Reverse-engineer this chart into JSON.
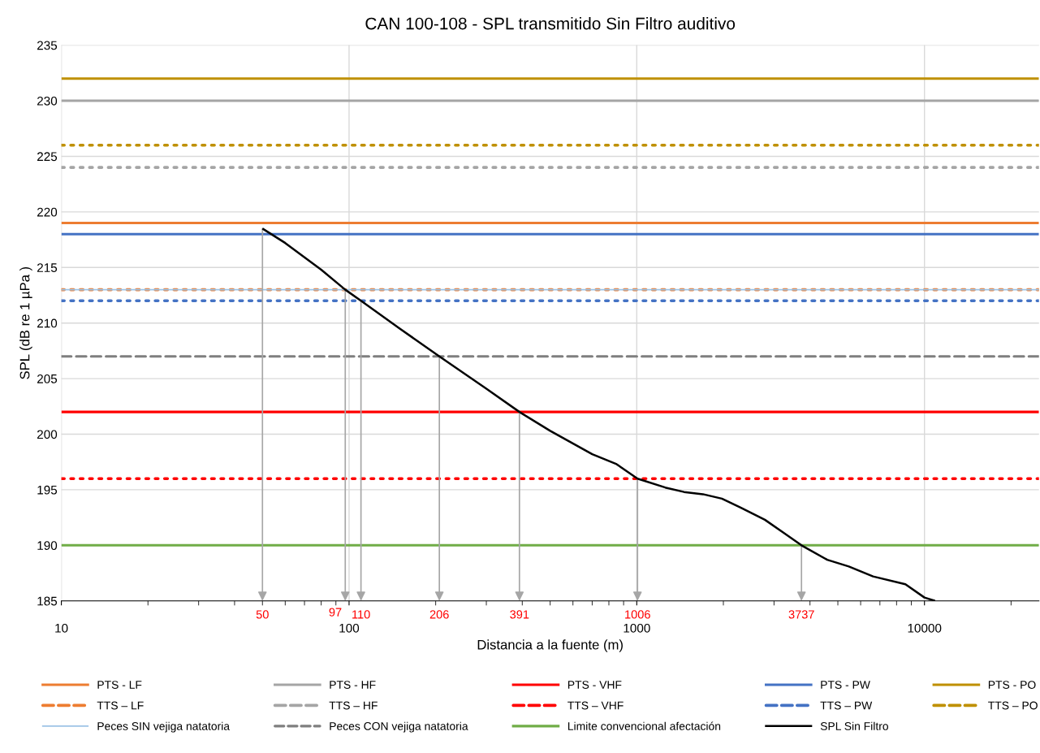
{
  "chart_data": {
    "type": "line",
    "title": "CAN 100-108 - SPL transmitido Sin Filtro auditivo",
    "xlabel": "Distancia a la fuente (m)",
    "ylabel": "SPL (dB re 1 µPa )",
    "log": "x",
    "xlim": [
      10,
      25000
    ],
    "xticks": [
      10,
      100,
      1000,
      10000
    ],
    "ylim": [
      185,
      235
    ],
    "yticks": [
      185,
      190,
      195,
      200,
      205,
      210,
      215,
      220,
      225,
      230,
      235
    ],
    "grid": true,
    "legend": "bottom",
    "marker": "none",
    "series": [
      {
        "name": "PTS - LF",
        "color": "#ed7d31",
        "line_style": "solid",
        "x": [
          10,
          25000
        ],
        "values": [
          219,
          219
        ]
      },
      {
        "name": "PTS - HF",
        "color": "#a5a5a5",
        "line_style": "solid",
        "x": [
          10,
          25000
        ],
        "values": [
          230,
          230
        ]
      },
      {
        "name": "PTS - VHF",
        "color": "#ff0000",
        "line_style": "solid",
        "x": [
          10,
          25000
        ],
        "values": [
          202,
          202
        ]
      },
      {
        "name": "PTS - PW",
        "color": "#4472c4",
        "line_style": "solid",
        "x": [
          10,
          25000
        ],
        "values": [
          218,
          218
        ]
      },
      {
        "name": "PTS - PO",
        "color": "#bf9000",
        "line_style": "solid",
        "x": [
          10,
          25000
        ],
        "values": [
          232,
          232
        ]
      },
      {
        "name": "TTS – LF",
        "color": "#ed7d31",
        "line_style": "dotted",
        "x": [
          10,
          25000
        ],
        "values": [
          213,
          213
        ]
      },
      {
        "name": "TTS – HF",
        "color": "#a5a5a5",
        "line_style": "dotted",
        "x": [
          10,
          25000
        ],
        "values": [
          224,
          224
        ]
      },
      {
        "name": "TTS – VHF",
        "color": "#ff0000",
        "line_style": "dotted",
        "x": [
          10,
          25000
        ],
        "values": [
          196,
          196
        ]
      },
      {
        "name": "TTS – PW",
        "color": "#4472c4",
        "line_style": "dotted",
        "x": [
          10,
          25000
        ],
        "values": [
          212,
          212
        ]
      },
      {
        "name": "TTS – PO",
        "color": "#bf9000",
        "line_style": "dotted",
        "x": [
          10,
          25000
        ],
        "values": [
          226,
          226
        ]
      },
      {
        "name": "Peces SIN vejiga natatoria",
        "color": "#9dc3e6",
        "line_style": "solid",
        "x": [
          10,
          25000
        ],
        "values": [
          213,
          213
        ]
      },
      {
        "name": "Peces CON vejiga natatoria",
        "color": "#7f7f7f",
        "line_style": "dashed",
        "x": [
          10,
          25000
        ],
        "values": [
          207,
          207
        ]
      },
      {
        "name": "Limite convencional afectación",
        "color": "#70ad47",
        "line_style": "solid",
        "x": [
          10,
          25000
        ],
        "values": [
          190,
          190
        ]
      },
      {
        "name": "SPL Sin Filtro",
        "color": "#000000",
        "line_style": "solid",
        "x": [
          50,
          60,
          80,
          97,
          110,
          150,
          206,
          300,
          391,
          500,
          700,
          851,
          1006,
          1256,
          1460,
          1698,
          1977,
          2296,
          2788,
          3250,
          3737,
          4592,
          5458,
          6627,
          8585,
          10000,
          10890
        ],
        "values": [
          218.5,
          217.2,
          214.8,
          213,
          212,
          209.5,
          207,
          204.1,
          202,
          200.3,
          198.2,
          197.3,
          196,
          195.2,
          194.8,
          194.6,
          194.2,
          193.4,
          192.3,
          191.1,
          190,
          188.7,
          188.1,
          187.2,
          186.5,
          185.3,
          185
        ]
      }
    ],
    "annotations": [
      {
        "text": "50",
        "x": 50,
        "y": 218.5
      },
      {
        "text": "97",
        "x": 97,
        "y": 213
      },
      {
        "text": "110",
        "x": 110,
        "y": 212
      },
      {
        "text": "206",
        "x": 206,
        "y": 207
      },
      {
        "text": "391",
        "x": 391,
        "y": 202
      },
      {
        "text": "1006",
        "x": 1006,
        "y": 196
      },
      {
        "text": "3737",
        "x": 3737,
        "y": 190
      }
    ]
  }
}
